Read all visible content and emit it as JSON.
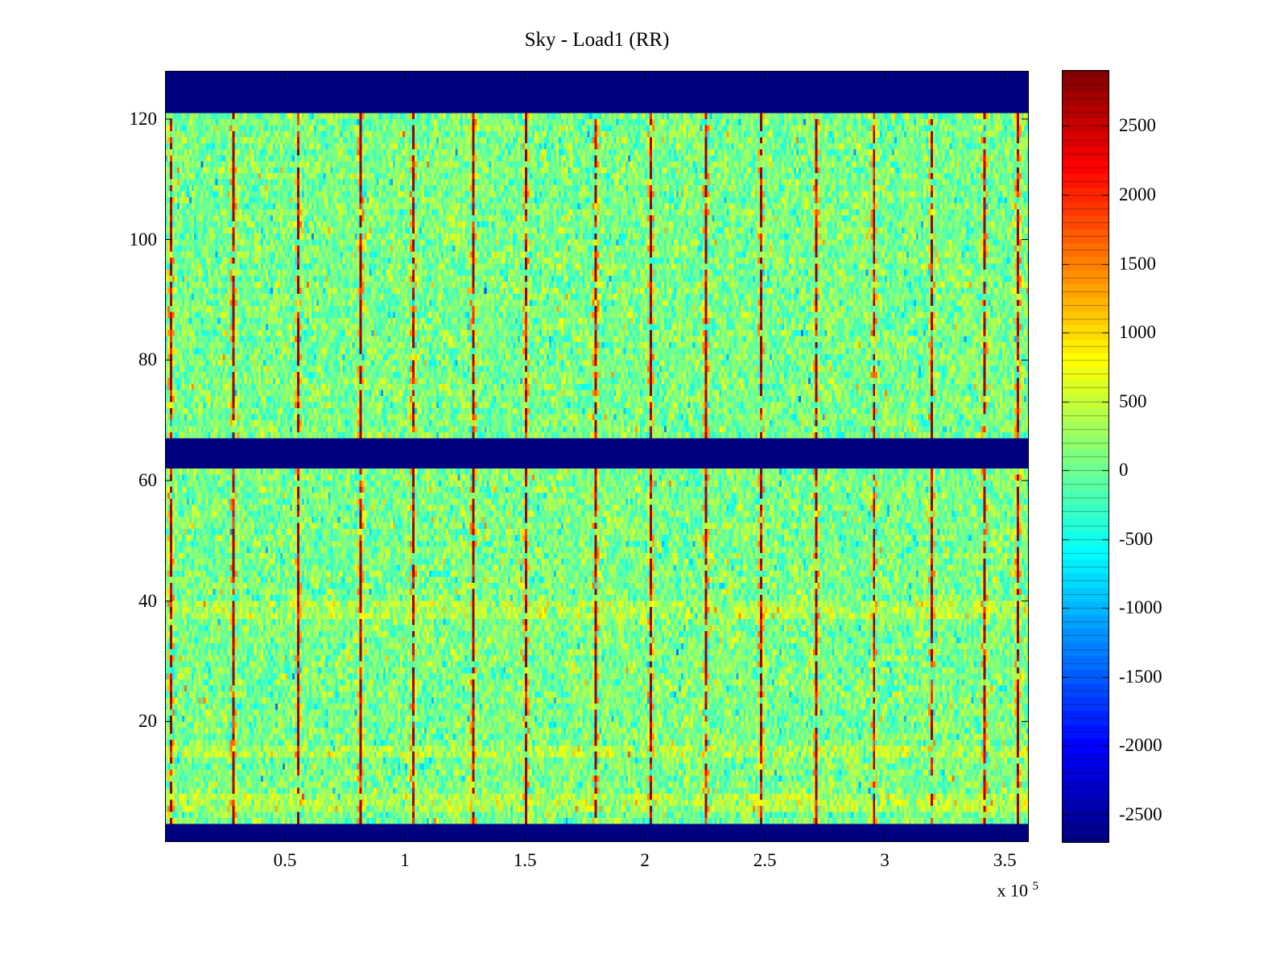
{
  "chart_data": {
    "type": "heatmap",
    "title": "Sky - Load1 (RR)",
    "xlabel": "",
    "ylabel": "",
    "x_scale_label": {
      "prefix": "x 10",
      "exponent": "5"
    },
    "x_unit_multiplier": 100000,
    "xlim": [
      0,
      3.6
    ],
    "ylim": [
      0,
      128
    ],
    "clim": [
      -2700,
      2900
    ],
    "colormap": "jet",
    "grid_on": false,
    "legend": "none",
    "colorbar_position": "right",
    "x_ticks": [
      "0.5",
      "1",
      "1.5",
      "2",
      "2.5",
      "3",
      "3.5"
    ],
    "x_tick_values": [
      0.5,
      1,
      1.5,
      2,
      2.5,
      3,
      3.5
    ],
    "y_ticks": [
      "20",
      "40",
      "60",
      "80",
      "100",
      "120"
    ],
    "y_tick_values": [
      20,
      40,
      60,
      80,
      100,
      120
    ],
    "colorbar_ticks": [
      "2500",
      "2000",
      "1500",
      "1000",
      "500",
      "0",
      "-500",
      "-1000",
      "-1500",
      "-2000",
      "-2500"
    ],
    "colorbar_tick_values": [
      2500,
      2000,
      1500,
      1000,
      500,
      0,
      -500,
      -1000,
      -1500,
      -2000,
      -2500
    ],
    "colorbar_step": 100,
    "grid": {
      "ncols": 360,
      "nrows": 128
    },
    "noise": {
      "mean": 60,
      "std": 330
    },
    "blue_bands_y": [
      [
        0,
        3.2
      ],
      [
        62,
        66.5
      ],
      [
        121.5,
        128
      ]
    ],
    "blue_band_value": -2700,
    "bright_rows_y": [
      6.5,
      15,
      38.5
    ],
    "streak_x": [
      0.02,
      0.28,
      0.55,
      0.81,
      1.03,
      1.28,
      1.5,
      1.79,
      2.02,
      2.25,
      2.48,
      2.71,
      2.95,
      3.19,
      3.41,
      3.55
    ],
    "streak_value": 2800,
    "seed": 123457,
    "description": "Dense noisy heatmap (jet colormap): background gaussian noise around 0 (green/cyan/yellow speckle), dark navy horizontal bands at bottom, middle (~y 62-66) and top (~y 122-128), and regularly spaced dashed dark-red vertical streaks."
  },
  "colors": {
    "background": "#ffffff",
    "axis": "#000000",
    "band_navy": "#00007f",
    "streak_maroon": "#7f0000"
  }
}
